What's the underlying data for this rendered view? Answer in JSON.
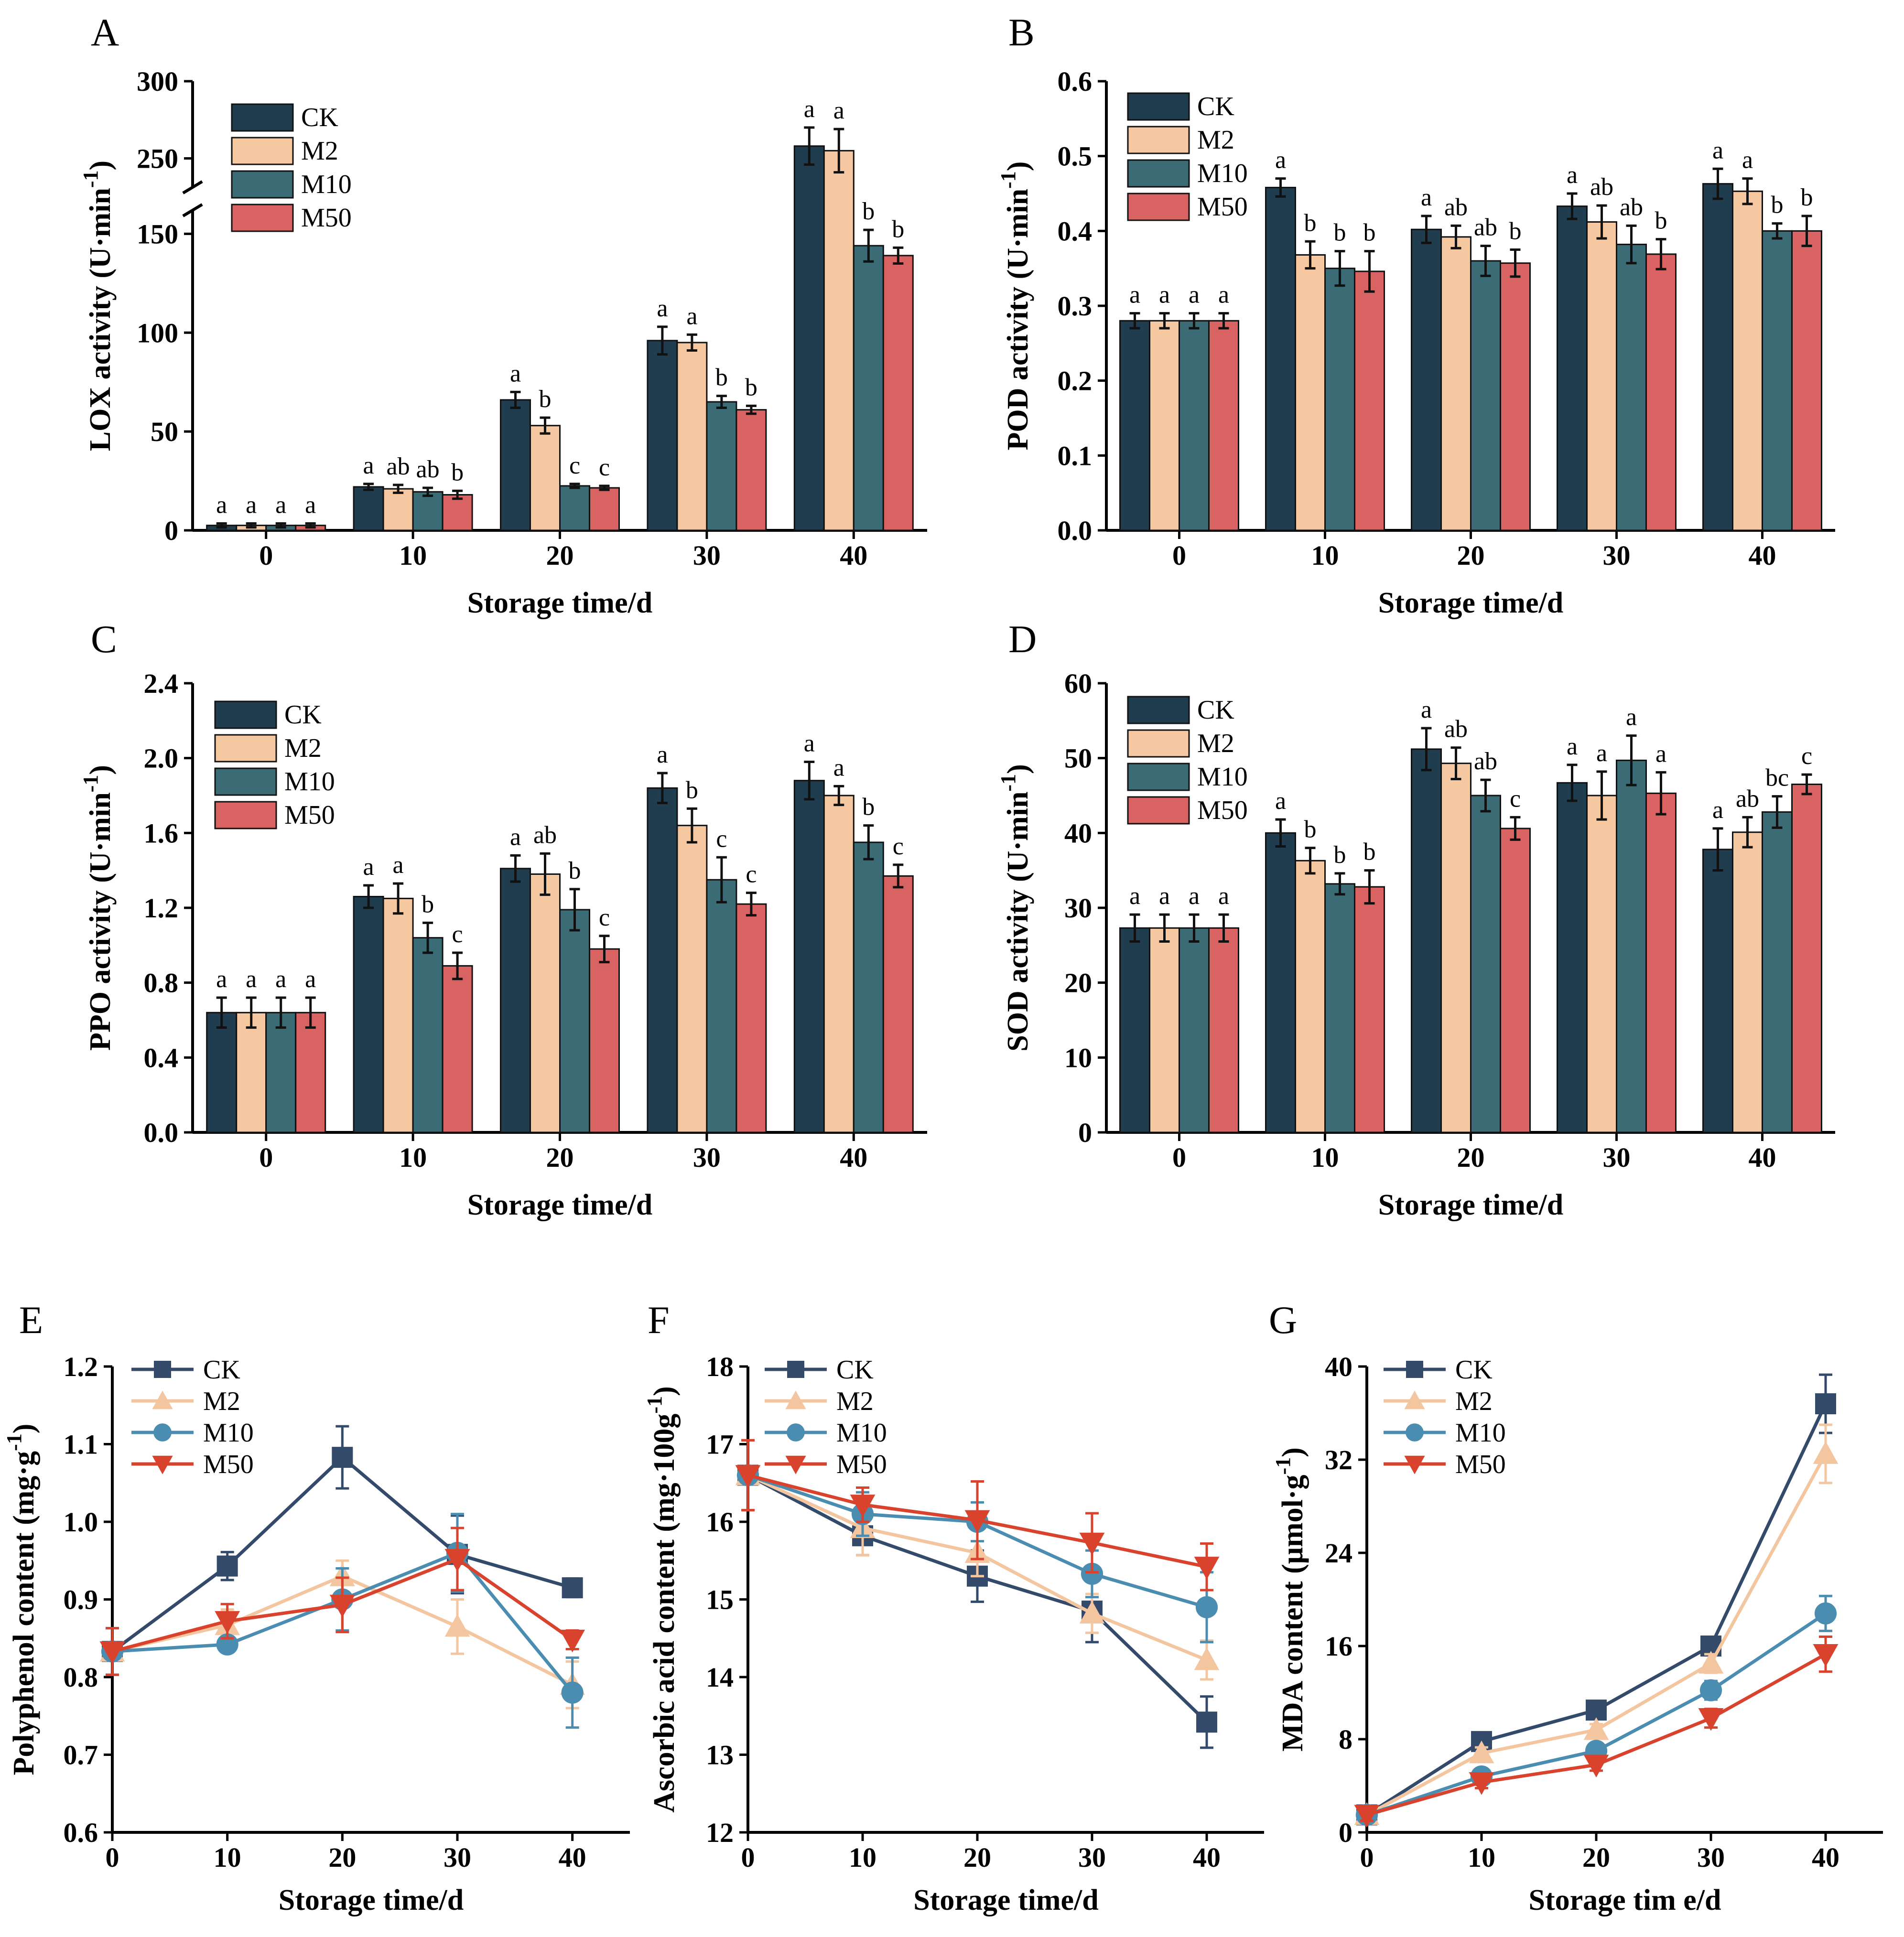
{
  "colors": {
    "CK_bar": "#1f3d4f",
    "M2_bar": "#f5c8a2",
    "M10_bar": "#3b6c76",
    "M50_bar": "#d96262",
    "CK_line": "#344a6b",
    "M2_line": "#f4c6a0",
    "M10_line": "#4a8db0",
    "M50_line": "#d9432e"
  },
  "chart_data": [
    {
      "panel": "A",
      "type": "bar",
      "ylabel": "LOX activity (U·min",
      "ylabel_sup": "-1",
      "ylabel_tail": ")",
      "xlabel": "Storage time/d",
      "categories": [
        "0",
        "10",
        "20",
        "30",
        "40"
      ],
      "ylim": [
        0,
        300
      ],
      "axis_break": {
        "lower_max": 160,
        "upper_min": 235,
        "upper_max": 300
      },
      "yticks": [
        "0",
        "50",
        "100",
        "150",
        "250",
        "300"
      ],
      "legend": [
        "CK",
        "M2",
        "M10",
        "M50"
      ],
      "series": [
        {
          "name": "CK",
          "values": [
            2.5,
            22,
            66,
            96,
            258
          ],
          "errors": [
            1,
            1.5,
            4,
            7,
            12
          ],
          "labels": [
            "a",
            "a",
            "a",
            "a",
            "a"
          ]
        },
        {
          "name": "M2",
          "values": [
            2.5,
            21,
            53,
            95,
            255
          ],
          "errors": [
            1,
            2,
            4,
            4,
            14
          ],
          "labels": [
            "a",
            "ab",
            "b",
            "a",
            "a"
          ]
        },
        {
          "name": "M10",
          "values": [
            2.5,
            19.5,
            22.5,
            65,
            144
          ],
          "errors": [
            1,
            2,
            1,
            3,
            8
          ],
          "labels": [
            "a",
            "ab",
            "c",
            "b",
            "b"
          ]
        },
        {
          "name": "M50",
          "values": [
            2.5,
            18,
            21.5,
            61,
            139
          ],
          "errors": [
            1,
            2,
            1,
            2,
            4
          ],
          "labels": [
            "a",
            "b",
            "c",
            "b",
            "b"
          ]
        }
      ]
    },
    {
      "panel": "B",
      "type": "bar",
      "ylabel": "POD activity (U·min",
      "ylabel_sup": "-1",
      "ylabel_tail": ")",
      "xlabel": "Storage time/d",
      "categories": [
        "0",
        "10",
        "20",
        "30",
        "40"
      ],
      "ylim": [
        0,
        0.6
      ],
      "yticks": [
        "0.0",
        "0.1",
        "0.2",
        "0.3",
        "0.4",
        "0.5",
        "0.6"
      ],
      "legend": [
        "CK",
        "M2",
        "M10",
        "M50"
      ],
      "series": [
        {
          "name": "CK",
          "values": [
            0.28,
            0.458,
            0.402,
            0.433,
            0.463
          ],
          "errors": [
            0.01,
            0.012,
            0.018,
            0.017,
            0.02
          ],
          "labels": [
            "a",
            "a",
            "a",
            "a",
            "a"
          ]
        },
        {
          "name": "M2",
          "values": [
            0.28,
            0.368,
            0.392,
            0.412,
            0.453
          ],
          "errors": [
            0.01,
            0.018,
            0.015,
            0.022,
            0.017
          ],
          "labels": [
            "a",
            "b",
            "ab",
            "ab",
            "a"
          ]
        },
        {
          "name": "M10",
          "values": [
            0.28,
            0.35,
            0.36,
            0.382,
            0.4
          ],
          "errors": [
            0.01,
            0.023,
            0.02,
            0.025,
            0.01
          ],
          "labels": [
            "a",
            "b",
            "ab",
            "ab",
            "b"
          ]
        },
        {
          "name": "M50",
          "values": [
            0.28,
            0.346,
            0.357,
            0.369,
            0.4
          ],
          "errors": [
            0.01,
            0.027,
            0.018,
            0.02,
            0.02
          ],
          "labels": [
            "a",
            "b",
            "b",
            "b",
            "b"
          ]
        }
      ]
    },
    {
      "panel": "C",
      "type": "bar",
      "ylabel": "PPO activity (U·min",
      "ylabel_sup": "-1",
      "ylabel_tail": ")",
      "xlabel": "Storage time/d",
      "categories": [
        "0",
        "10",
        "20",
        "30",
        "40"
      ],
      "ylim": [
        0,
        2.4
      ],
      "yticks": [
        "0.0",
        "0.4",
        "0.8",
        "1.2",
        "1.6",
        "2.0",
        "2.4"
      ],
      "legend": [
        "CK",
        "M2",
        "M10",
        "M50"
      ],
      "series": [
        {
          "name": "CK",
          "values": [
            0.64,
            1.26,
            1.41,
            1.84,
            1.88
          ],
          "errors": [
            0.08,
            0.06,
            0.07,
            0.08,
            0.1
          ],
          "labels": [
            "a",
            "a",
            "a",
            "a",
            "a"
          ]
        },
        {
          "name": "M2",
          "values": [
            0.64,
            1.25,
            1.38,
            1.64,
            1.8
          ],
          "errors": [
            0.08,
            0.08,
            0.11,
            0.09,
            0.05
          ],
          "labels": [
            "a",
            "a",
            "ab",
            "b",
            "a"
          ]
        },
        {
          "name": "M10",
          "values": [
            0.64,
            1.04,
            1.19,
            1.35,
            1.55
          ],
          "errors": [
            0.08,
            0.08,
            0.11,
            0.12,
            0.09
          ],
          "labels": [
            "a",
            "b",
            "b",
            "c",
            "b"
          ]
        },
        {
          "name": "M50",
          "values": [
            0.64,
            0.89,
            0.98,
            1.22,
            1.37
          ],
          "errors": [
            0.08,
            0.07,
            0.07,
            0.06,
            0.06
          ],
          "labels": [
            "a",
            "c",
            "c",
            "c",
            "c"
          ]
        }
      ]
    },
    {
      "panel": "D",
      "type": "bar",
      "ylabel": "SOD activity (U·min",
      "ylabel_sup": "-1",
      "ylabel_tail": ")",
      "xlabel": "Storage time/d",
      "categories": [
        "0",
        "10",
        "20",
        "30",
        "40"
      ],
      "ylim": [
        0,
        60
      ],
      "yticks": [
        "0",
        "10",
        "20",
        "30",
        "40",
        "50",
        "60"
      ],
      "legend": [
        "CK",
        "M2",
        "M10",
        "M50"
      ],
      "series": [
        {
          "name": "CK",
          "values": [
            27.3,
            40,
            51.2,
            46.7,
            37.8
          ],
          "errors": [
            1.8,
            1.8,
            2.8,
            2.4,
            2.8
          ],
          "labels": [
            "a",
            "a",
            "a",
            "a",
            "a"
          ]
        },
        {
          "name": "M2",
          "values": [
            27.3,
            36.3,
            49.3,
            45,
            40.1
          ],
          "errors": [
            1.8,
            1.7,
            2.1,
            3.2,
            2
          ],
          "labels": [
            "a",
            "b",
            "ab",
            "a",
            "ab"
          ]
        },
        {
          "name": "M10",
          "values": [
            27.3,
            33.2,
            45,
            49.7,
            42.8
          ],
          "errors": [
            1.8,
            1.4,
            2.1,
            3.3,
            2.1
          ],
          "labels": [
            "a",
            "b",
            "ab",
            "a",
            "bc"
          ]
        },
        {
          "name": "M50",
          "values": [
            27.3,
            32.8,
            40.6,
            45.3,
            46.5
          ],
          "errors": [
            1.8,
            2.2,
            1.5,
            2.8,
            1.3
          ],
          "labels": [
            "a",
            "b",
            "c",
            "a",
            "c"
          ]
        }
      ]
    },
    {
      "panel": "E",
      "type": "line",
      "ylabel": "Polyphenol content  (mg·g",
      "ylabel_sup": "-1",
      "ylabel_tail": ")",
      "xlabel": "Storage time/d",
      "x": [
        0,
        10,
        20,
        30,
        40
      ],
      "xlim": [
        0,
        45
      ],
      "ylim": [
        0.6,
        1.2
      ],
      "xticks": [
        "0",
        "10",
        "20",
        "30",
        "40"
      ],
      "yticks": [
        "0.6",
        "0.7",
        "0.8",
        "0.9",
        "1.0",
        "1.1",
        "1.2"
      ],
      "legend": [
        "CK",
        "M2",
        "M10",
        "M50"
      ],
      "series": [
        {
          "name": "CK",
          "marker": "square",
          "values": [
            0.833,
            0.943,
            1.083,
            0.958,
            0.915
          ],
          "errors": [
            0.03,
            0.018,
            0.04,
            0.05,
            0.012
          ]
        },
        {
          "name": "M2",
          "marker": "triangle",
          "values": [
            0.833,
            0.867,
            0.93,
            0.865,
            0.79
          ],
          "errors": [
            0.03,
            0.02,
            0.02,
            0.035,
            0.03
          ]
        },
        {
          "name": "M10",
          "marker": "circle",
          "values": [
            0.833,
            0.842,
            0.9,
            0.96,
            0.78
          ],
          "errors": [
            0.03,
            0.01,
            0.04,
            0.05,
            0.045
          ]
        },
        {
          "name": "M50",
          "marker": "triangle-down",
          "values": [
            0.833,
            0.872,
            0.893,
            0.952,
            0.848
          ],
          "errors": [
            0.03,
            0.022,
            0.035,
            0.04,
            0.012
          ]
        }
      ]
    },
    {
      "panel": "F",
      "type": "line",
      "ylabel": "Ascorbic acid content (mg·100g",
      "ylabel_sup": "-1",
      "ylabel_tail": ")",
      "xlabel": "Storage time/d",
      "x": [
        0,
        10,
        20,
        30,
        40
      ],
      "xlim": [
        0,
        45
      ],
      "ylim": [
        12,
        18
      ],
      "xticks": [
        "0",
        "10",
        "20",
        "30",
        "40"
      ],
      "yticks": [
        "12",
        "13",
        "14",
        "15",
        "16",
        "17",
        "18"
      ],
      "legend": [
        "CK",
        "M2",
        "M10",
        "M50"
      ],
      "series": [
        {
          "name": "CK",
          "marker": "square",
          "values": [
            16.6,
            15.82,
            15.3,
            14.85,
            13.42
          ],
          "errors": [
            0.45,
            0.25,
            0.33,
            0.4,
            0.33
          ]
        },
        {
          "name": "M2",
          "marker": "triangle",
          "values": [
            16.6,
            15.92,
            15.6,
            14.82,
            14.22
          ],
          "errors": [
            0.45,
            0.35,
            0.3,
            0.25,
            0.25
          ]
        },
        {
          "name": "M10",
          "marker": "circle",
          "values": [
            16.6,
            16.1,
            16.0,
            15.33,
            14.9
          ],
          "errors": [
            0.45,
            0.28,
            0.25,
            0.3,
            0.45
          ]
        },
        {
          "name": "M50",
          "marker": "triangle-down",
          "values": [
            16.6,
            16.22,
            16.02,
            15.73,
            15.42
          ],
          "errors": [
            0.45,
            0.22,
            0.5,
            0.38,
            0.3
          ]
        }
      ]
    },
    {
      "panel": "G",
      "type": "line",
      "ylabel": "MDA content (μmol·g",
      "ylabel_sup": "-1",
      "ylabel_tail": ")",
      "xlabel": "Storage tim e/d",
      "x": [
        0,
        10,
        20,
        30,
        40
      ],
      "xlim": [
        0,
        45
      ],
      "ylim": [
        0,
        40
      ],
      "xticks": [
        "0",
        "10",
        "20",
        "30",
        "40"
      ],
      "yticks": [
        "0",
        "8",
        "16",
        "24",
        "32",
        "40"
      ],
      "legend": [
        "CK",
        "M2",
        "M10",
        "M50"
      ],
      "series": [
        {
          "name": "CK",
          "marker": "square",
          "values": [
            1.5,
            7.8,
            10.5,
            16.0,
            36.8
          ],
          "errors": [
            0.5,
            0.5,
            0.5,
            0.8,
            2.5
          ]
        },
        {
          "name": "M2",
          "marker": "triangle",
          "values": [
            1.5,
            6.8,
            8.8,
            14.5,
            32.5
          ],
          "errors": [
            0.5,
            0.5,
            0.5,
            0.8,
            2.5
          ]
        },
        {
          "name": "M10",
          "marker": "circle",
          "values": [
            1.5,
            4.8,
            7.0,
            12.2,
            18.8
          ],
          "errors": [
            0.5,
            0.5,
            0.5,
            0.8,
            1.5
          ]
        },
        {
          "name": "M50",
          "marker": "triangle-down",
          "values": [
            1.5,
            4.3,
            5.8,
            9.8,
            15.3
          ],
          "errors": [
            0.5,
            0.5,
            0.5,
            0.8,
            1.5
          ]
        }
      ]
    }
  ]
}
